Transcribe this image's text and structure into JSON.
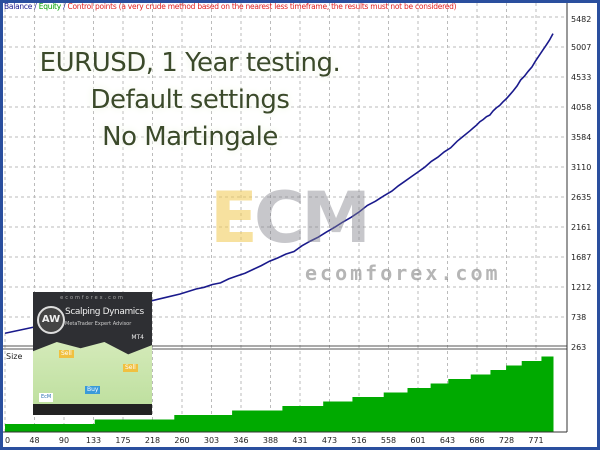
{
  "legend": {
    "balance": "Balance",
    "sep1": " / ",
    "equity": "Equity",
    "sep2": " / ",
    "control": "Control points (a very crude method based on the nearest less timeframe, the results must not be considered)"
  },
  "colors": {
    "balance": "#1a1a8c",
    "equity": "#00a000",
    "control": "#e02020",
    "volume": "#00aa00",
    "frame": "#2a4f9e"
  },
  "overlay": {
    "line1": "EURUSD, 1 Year testing.",
    "line2": "Default settings",
    "line3": "No Martingale"
  },
  "watermark": {
    "logo": "ECM",
    "site": "ecomforex.com"
  },
  "inset": {
    "site": "ecomforex.com",
    "logo": "AW",
    "title": "Scalping Dynamics",
    "subtitle": "MetaTrader Expert Advisor",
    "platform": "MT4",
    "sell": "Sell",
    "buy": "Buy",
    "sell2": "Sell",
    "brand": "EcM"
  },
  "volume_panel": {
    "label": "Size"
  },
  "chart_data": {
    "type": "line",
    "y_ticks": [
      "5482",
      "5007",
      "4533",
      "4058",
      "3584",
      "3110",
      "2635",
      "2161",
      "1687",
      "1212",
      "738",
      "263"
    ],
    "x_ticks": [
      "0",
      "48",
      "90",
      "133",
      "175",
      "218",
      "260",
      "303",
      "346",
      "388",
      "431",
      "473",
      "516",
      "558",
      "601",
      "643",
      "686",
      "728",
      "771"
    ],
    "ylim": [
      263,
      5482
    ],
    "xlim": [
      0,
      806
    ],
    "grid": true,
    "balance": {
      "x": [
        0,
        140,
        281,
        353,
        425,
        497,
        569,
        627,
        684,
        713,
        742,
        775,
        806
      ],
      "y": [
        480,
        800,
        1162,
        1430,
        1792,
        2230,
        2738,
        3180,
        3684,
        3950,
        4235,
        4700,
        5200
      ]
    },
    "size": {
      "x_end": [
        132,
        249,
        334,
        408,
        468,
        511,
        557,
        592,
        626,
        652,
        685,
        714,
        737,
        760,
        789,
        806
      ],
      "values": [
        2,
        3,
        4,
        5,
        6,
        7,
        8,
        9,
        10,
        11,
        12,
        13,
        14,
        15,
        16,
        17
      ],
      "max": 18
    }
  }
}
